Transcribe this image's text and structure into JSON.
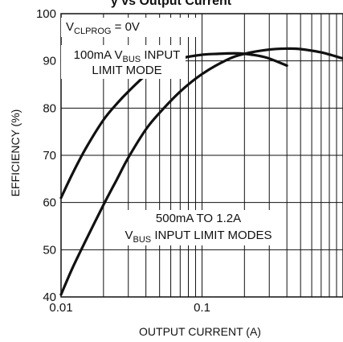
{
  "chart_data": {
    "type": "line",
    "title_fragment": "y vs Output Current",
    "xlabel": "OUTPUT CURRENT (A)",
    "ylabel": "EFFICIENCY (%)",
    "xscale": "log",
    "xlim": [
      0.01,
      1.0
    ],
    "ylim": [
      40,
      100
    ],
    "x_tick_labels": [
      "0.01",
      "0.1"
    ],
    "y_tick_labels": [
      "40",
      "50",
      "60",
      "70",
      "80",
      "90",
      "100"
    ],
    "y_ticks": [
      40,
      50,
      60,
      70,
      80,
      90,
      100
    ],
    "grid": true,
    "series": [
      {
        "x": [
          0.01,
          0.012,
          0.015,
          0.02,
          0.025,
          0.03,
          0.04,
          0.05,
          0.07,
          0.1,
          0.13,
          0.17,
          0.2,
          0.25,
          0.3,
          0.4
        ],
        "y": [
          61,
          66,
          71.5,
          77.5,
          81,
          83.5,
          87,
          88.8,
          90.5,
          91.3,
          91.5,
          91.6,
          91.5,
          91.1,
          90.5,
          89
        ],
        "color": "#111111"
      },
      {
        "x": [
          0.01,
          0.012,
          0.015,
          0.02,
          0.025,
          0.03,
          0.04,
          0.05,
          0.07,
          0.1,
          0.15,
          0.2,
          0.3,
          0.4,
          0.5,
          0.7,
          1.0
        ],
        "y": [
          40.5,
          46,
          52,
          59.5,
          65,
          69.5,
          75.5,
          79,
          83.5,
          87.2,
          90.2,
          91.5,
          92.4,
          92.6,
          92.5,
          91.8,
          90.5
        ],
        "color": "#111111"
      }
    ],
    "annotations": [
      {
        "id": "vclprog",
        "parts": [
          {
            "t": "V"
          },
          {
            "t": "CLPROG",
            "sub": true
          },
          {
            "t": " = 0V"
          }
        ]
      },
      {
        "id": "hundred_line1",
        "parts": [
          {
            "t": "100mA V"
          },
          {
            "t": "BUS",
            "sub": true
          },
          {
            "t": " INPUT"
          }
        ]
      },
      {
        "id": "hundred_line2",
        "parts": [
          {
            "t": "LIMIT MODE"
          }
        ]
      },
      {
        "id": "fivehundred_line1",
        "parts": [
          {
            "t": "500mA TO 1.2A"
          }
        ]
      },
      {
        "id": "fivehundred_line2",
        "parts": [
          {
            "t": "V"
          },
          {
            "t": "BUS",
            "sub": true
          },
          {
            "t": " INPUT LIMIT MODES"
          }
        ]
      }
    ]
  }
}
